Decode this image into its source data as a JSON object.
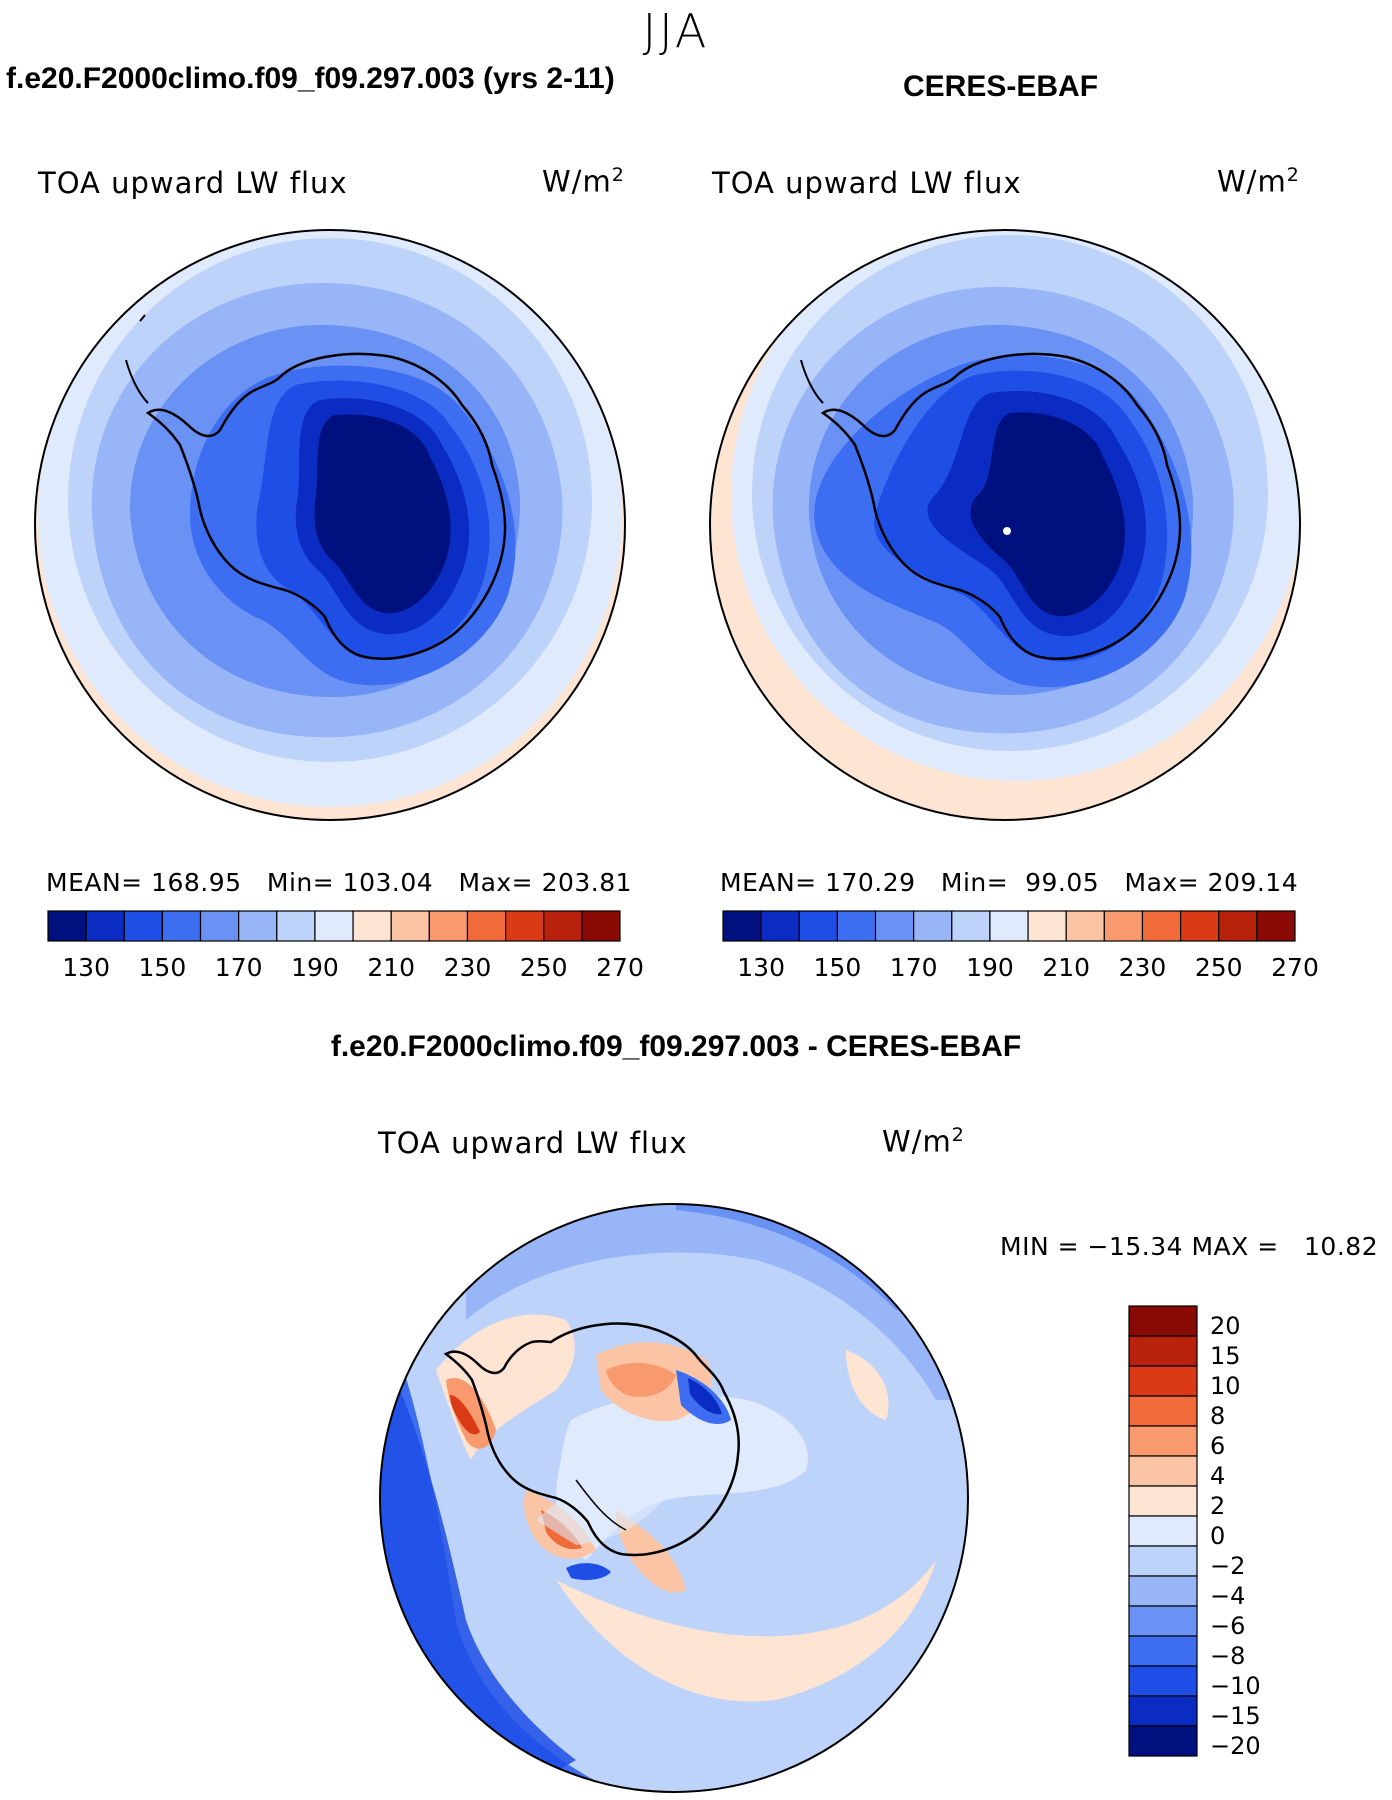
{
  "figure": {
    "season": "JJA",
    "left_panel": {
      "case_title": "f.e20.F2000climo.f09_f09.297.003 (yrs 2-11)",
      "variable": "TOA upward LW flux",
      "units_base": "W/m",
      "units_exp": "2",
      "stats": {
        "mean_label": "MEAN=",
        "mean": "168.95",
        "min_label": "Min=",
        "min": "103.04",
        "max_label": "Max=",
        "max": "203.81"
      }
    },
    "right_panel": {
      "case_title": "CERES-EBAF",
      "variable": "TOA upward LW flux",
      "units_base": "W/m",
      "units_exp": "2",
      "stats": {
        "mean_label": "MEAN=",
        "mean": "170.29",
        "min_label": "Min=",
        "min": "99.05",
        "max_label": "Max=",
        "max": "209.14"
      }
    },
    "diff_panel": {
      "case_title": "f.e20.F2000climo.f09_f09.297.003 - CERES-EBAF",
      "variable": "TOA upward LW flux",
      "units_base": "W/m",
      "units_exp": "2",
      "minmax": {
        "min_label": "MIN =",
        "min": "−15.34",
        "max_label": "MAX =",
        "max": "10.82"
      }
    },
    "colorbar_abs": {
      "ticks": [
        "130",
        "150",
        "170",
        "190",
        "210",
        "230",
        "250",
        "270"
      ],
      "colors": [
        "#00107f",
        "#0a2cc2",
        "#1f4ee6",
        "#3d6ef2",
        "#6a92f4",
        "#98b6f7",
        "#bed3fa",
        "#dfeafc",
        "#fde4d3",
        "#fbc4a4",
        "#f89a6e",
        "#f06a3a",
        "#db3a17",
        "#b8210b",
        "#8a0a06"
      ]
    },
    "colorbar_diff": {
      "labels": [
        "20",
        "15",
        "10",
        "8",
        "6",
        "4",
        "2",
        "0",
        "−2",
        "−4",
        "−6",
        "−8",
        "−10",
        "−15",
        "−20"
      ],
      "colors": [
        "#8a0a06",
        "#b8210b",
        "#db3a17",
        "#f06a3a",
        "#f89a6e",
        "#fbc4a4",
        "#fde4d3",
        "#dfeafc",
        "#bed3fa",
        "#98b6f7",
        "#6a92f4",
        "#3d6ef2",
        "#1f4ee6",
        "#0a2cc2",
        "#00107f"
      ]
    }
  }
}
